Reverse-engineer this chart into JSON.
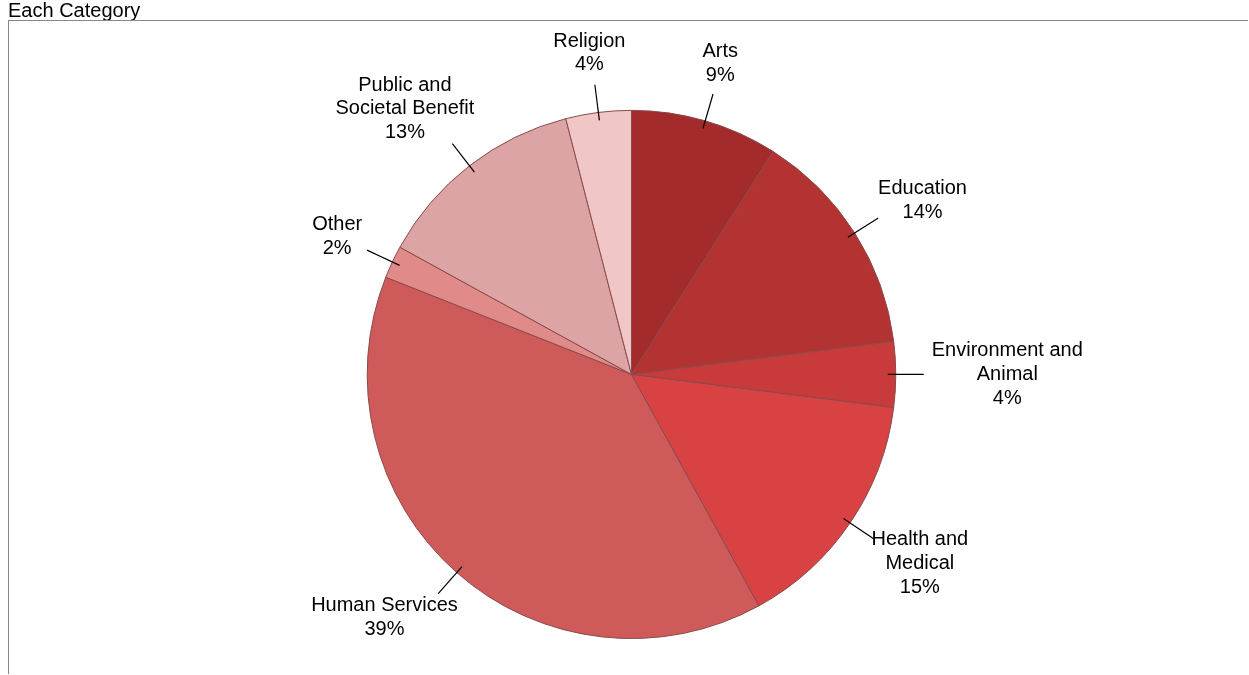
{
  "chart_data": {
    "type": "pie",
    "title": "Each Category",
    "categories": [
      "Arts",
      "Education",
      "Environment and Animal",
      "Health and Medical",
      "Human Services",
      "Other",
      "Public and Societal Benefit",
      "Religion"
    ],
    "values": [
      9,
      14,
      4,
      15,
      39,
      2,
      13,
      4
    ],
    "value_labels": [
      "9%",
      "14%",
      "4%",
      "15%",
      "39%",
      "2%",
      "13%",
      "4%"
    ],
    "colors": [
      "#a32b2b",
      "#b33232",
      "#c93a3a",
      "#d84242",
      "#cf5a5a",
      "#e08a8a",
      "#dca4a4",
      "#f0c6c6"
    ],
    "legend": false
  }
}
